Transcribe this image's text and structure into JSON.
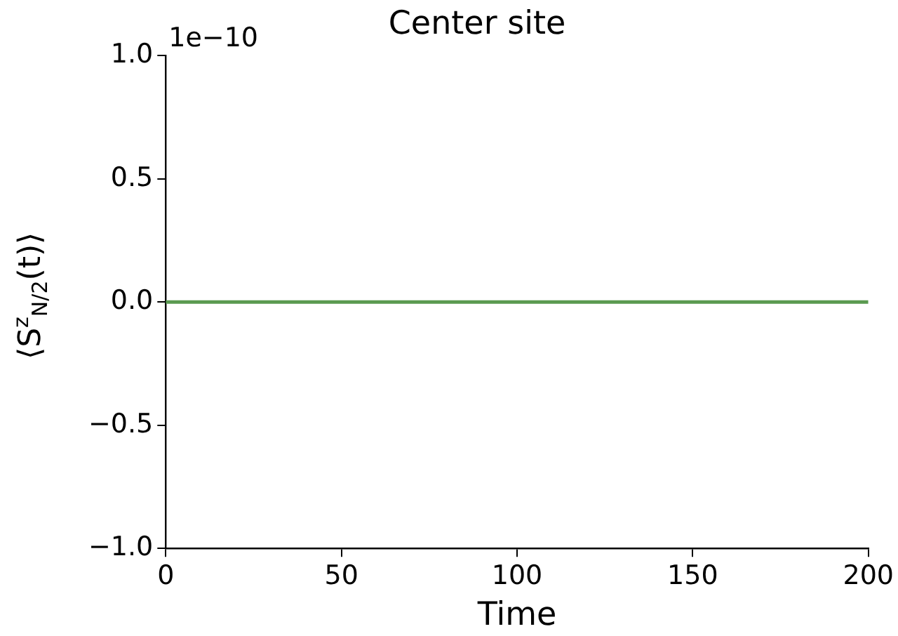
{
  "chart_data": {
    "type": "line",
    "title": "Center site",
    "xlabel": "Time",
    "ylabel": "⟨S$^{z}$$_{N/2}$(t)⟩",
    "annotations": [
      "1e−10"
    ],
    "x": [
      0,
      200
    ],
    "series": [
      {
        "color": "#5a9a50",
        "values": [
          0,
          0
        ]
      }
    ],
    "xlim": [
      0,
      200
    ],
    "xticks": [
      0,
      50,
      100,
      150,
      200
    ],
    "ylim": [
      -1,
      1
    ],
    "yticks": [
      {
        "value": -1,
        "label": "−1.0"
      },
      {
        "value": -0.5,
        "label": "−0.5"
      },
      {
        "value": 0,
        "label": "0.0"
      },
      {
        "value": 0.5,
        "label": "0.5"
      },
      {
        "value": 1,
        "label": "1.0"
      }
    ],
    "grid": false,
    "legend": false,
    "marker": "none",
    "line_style": "solid"
  }
}
